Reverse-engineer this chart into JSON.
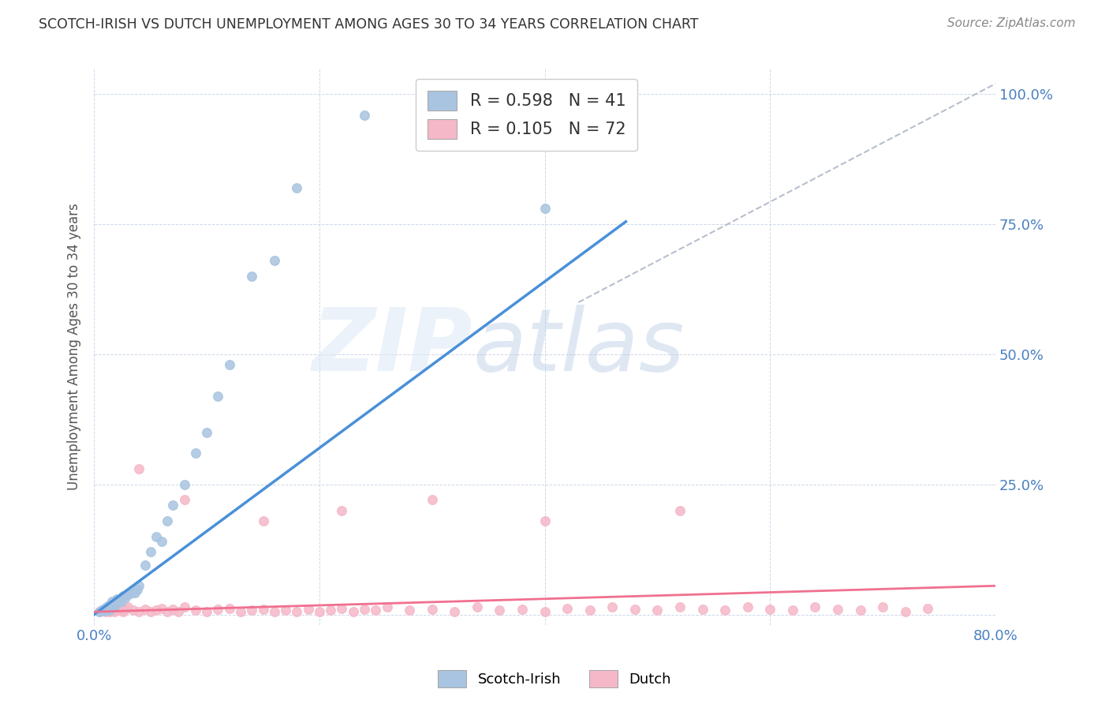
{
  "title": "SCOTCH-IRISH VS DUTCH UNEMPLOYMENT AMONG AGES 30 TO 34 YEARS CORRELATION CHART",
  "source": "Source: ZipAtlas.com",
  "ylabel": "Unemployment Among Ages 30 to 34 years",
  "xlim": [
    0.0,
    0.8
  ],
  "ylim": [
    -0.02,
    1.05
  ],
  "blue_color": "#a8c4e0",
  "pink_color": "#f5b8c8",
  "blue_line_color": "#4a90d9",
  "pink_line_color": "#f07090",
  "diag_line_color": "#b0b8c8",
  "legend_blue_label": "R = 0.598   N = 41",
  "legend_pink_label": "R = 0.105   N = 72",
  "legend_scotchirish": "Scotch-Irish",
  "legend_dutch": "Dutch",
  "watermark_zip": "ZIP",
  "watermark_atlas": "atlas",
  "blue_line_x": [
    0.0,
    0.472
  ],
  "blue_line_y": [
    0.0,
    0.755
  ],
  "pink_line_x": [
    0.0,
    0.8
  ],
  "pink_line_y": [
    0.005,
    0.055
  ],
  "diag_line_x": [
    0.43,
    0.8
  ],
  "diag_line_y": [
    0.6,
    1.02
  ],
  "scotch_x": [
    0.005,
    0.007,
    0.008,
    0.009,
    0.01,
    0.011,
    0.012,
    0.013,
    0.014,
    0.015,
    0.016,
    0.017,
    0.018,
    0.019,
    0.02,
    0.022,
    0.024,
    0.026,
    0.028,
    0.03,
    0.032,
    0.034,
    0.036,
    0.038,
    0.04,
    0.045,
    0.05,
    0.055,
    0.06,
    0.065,
    0.07,
    0.08,
    0.09,
    0.1,
    0.11,
    0.12,
    0.14,
    0.16,
    0.18,
    0.24,
    0.4
  ],
  "scotch_y": [
    0.005,
    0.008,
    0.01,
    0.007,
    0.012,
    0.015,
    0.01,
    0.018,
    0.008,
    0.02,
    0.025,
    0.015,
    0.022,
    0.018,
    0.03,
    0.028,
    0.025,
    0.035,
    0.032,
    0.038,
    0.04,
    0.045,
    0.042,
    0.048,
    0.055,
    0.095,
    0.12,
    0.15,
    0.14,
    0.18,
    0.21,
    0.25,
    0.31,
    0.35,
    0.42,
    0.48,
    0.65,
    0.68,
    0.82,
    0.96,
    0.78
  ],
  "dutch_x": [
    0.005,
    0.008,
    0.01,
    0.012,
    0.014,
    0.016,
    0.018,
    0.02,
    0.022,
    0.024,
    0.026,
    0.028,
    0.03,
    0.035,
    0.04,
    0.045,
    0.05,
    0.055,
    0.06,
    0.065,
    0.07,
    0.075,
    0.08,
    0.09,
    0.1,
    0.11,
    0.12,
    0.13,
    0.14,
    0.15,
    0.16,
    0.17,
    0.18,
    0.19,
    0.2,
    0.21,
    0.22,
    0.23,
    0.24,
    0.25,
    0.26,
    0.28,
    0.3,
    0.32,
    0.34,
    0.36,
    0.38,
    0.4,
    0.42,
    0.44,
    0.46,
    0.48,
    0.5,
    0.52,
    0.54,
    0.56,
    0.58,
    0.6,
    0.62,
    0.64,
    0.66,
    0.68,
    0.7,
    0.72,
    0.74,
    0.04,
    0.08,
    0.15,
    0.22,
    0.3,
    0.4,
    0.52
  ],
  "dutch_y": [
    0.005,
    0.008,
    0.006,
    0.01,
    0.005,
    0.008,
    0.006,
    0.01,
    0.008,
    0.012,
    0.005,
    0.01,
    0.015,
    0.008,
    0.006,
    0.01,
    0.005,
    0.008,
    0.012,
    0.006,
    0.01,
    0.005,
    0.015,
    0.008,
    0.006,
    0.01,
    0.012,
    0.006,
    0.008,
    0.01,
    0.005,
    0.008,
    0.006,
    0.01,
    0.005,
    0.008,
    0.012,
    0.006,
    0.01,
    0.008,
    0.015,
    0.008,
    0.01,
    0.006,
    0.015,
    0.008,
    0.01,
    0.006,
    0.012,
    0.008,
    0.015,
    0.01,
    0.008,
    0.015,
    0.01,
    0.008,
    0.015,
    0.01,
    0.008,
    0.015,
    0.01,
    0.008,
    0.015,
    0.005,
    0.012,
    0.28,
    0.22,
    0.18,
    0.2,
    0.22,
    0.18,
    0.2
  ]
}
